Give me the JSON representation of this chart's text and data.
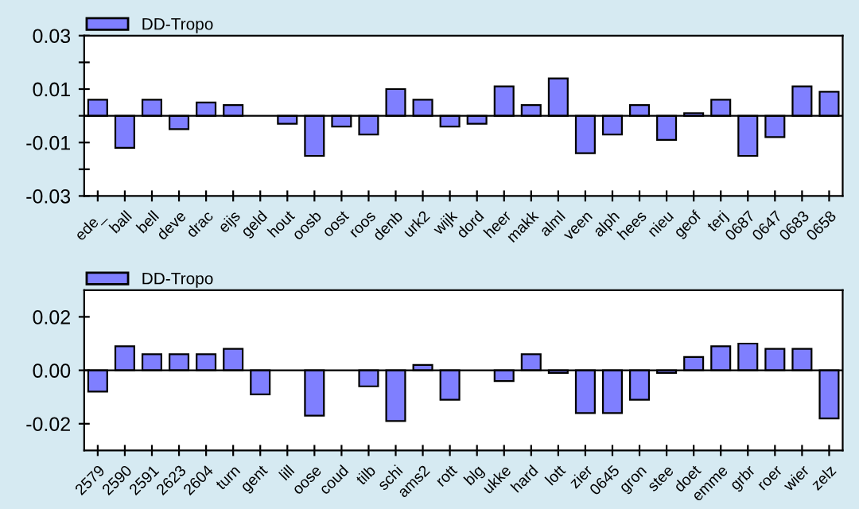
{
  "chart_data": [
    {
      "type": "bar",
      "categories": [
        "ede_",
        "ball",
        "bell",
        "deve",
        "drac",
        "eijs",
        "geld",
        "hout",
        "oosb",
        "oost",
        "roos",
        "denb",
        "urk2",
        "wijk",
        "dord",
        "heer",
        "makk",
        "alml",
        "veen",
        "alph",
        "hees",
        "nieu",
        "geof",
        "terj",
        "0687",
        "0647",
        "0683",
        "0658"
      ],
      "series": [
        {
          "name": "DD-Tropo",
          "color": "#7f7fff",
          "values": [
            0.006,
            -0.012,
            0.006,
            -0.005,
            0.005,
            0.004,
            null,
            -0.003,
            -0.015,
            -0.004,
            -0.007,
            0.01,
            0.006,
            -0.004,
            -0.003,
            0.011,
            0.004,
            0.014,
            -0.014,
            -0.007,
            0.004,
            -0.009,
            0.001,
            0.006,
            -0.015,
            -0.008,
            0.011,
            0.009
          ]
        }
      ],
      "ylim": [
        -0.03,
        0.03
      ],
      "yticks": [
        -0.03,
        {
          "value": -0.02,
          "label": null
        },
        -0.01,
        {
          "value": 0,
          "label": null
        },
        0.01,
        {
          "value": 0.02,
          "label": null
        },
        0.03
      ],
      "ref_lines": [
        {
          "axis": "y",
          "value": 0,
          "color": "#000000"
        }
      ],
      "legend": "top left"
    },
    {
      "type": "bar",
      "categories": [
        "2579",
        "2590",
        "2591",
        "2623",
        "2604",
        "turn",
        "gent",
        "lill",
        "oose",
        "coud",
        "tilb",
        "schi",
        "ams2",
        "rott",
        "blg",
        "ukke",
        "hard",
        "lott",
        "zier",
        "0645",
        "gron",
        "stee",
        "doet",
        "emme",
        "grbr",
        "roer",
        "wier",
        "zelz"
      ],
      "series": [
        {
          "name": "DD-Tropo",
          "color": "#7f7fff",
          "values": [
            -0.008,
            0.009,
            0.006,
            0.006,
            0.006,
            0.008,
            -0.009,
            null,
            -0.017,
            null,
            -0.006,
            -0.019,
            0.002,
            -0.011,
            null,
            -0.004,
            0.006,
            -0.001,
            -0.016,
            -0.016,
            -0.011,
            -0.001,
            0.005,
            0.009,
            0.01,
            0.008,
            0.008,
            -0.018
          ]
        }
      ],
      "ylim": [
        -0.03,
        0.03
      ],
      "yticks": [
        {
          "value": -0.02,
          "label": "-0.02"
        },
        {
          "value": 0,
          "label": "0.00"
        },
        {
          "value": 0.02,
          "label": "0.02"
        }
      ],
      "ref_lines": [
        {
          "axis": "y",
          "value": 0,
          "color": "#000000"
        }
      ],
      "legend": "top left"
    }
  ]
}
